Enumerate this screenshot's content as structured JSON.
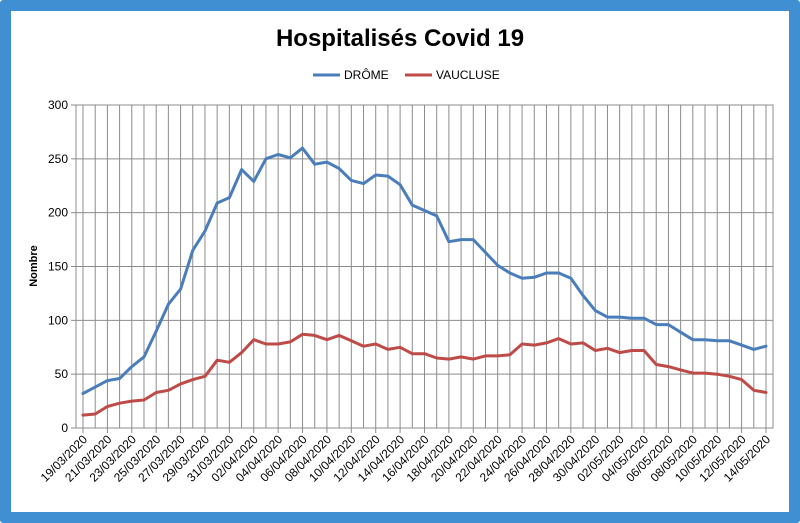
{
  "chart_data": {
    "type": "line",
    "title": "Hospitalisés Covid 19",
    "ylabel": "Nombre",
    "xlabel": "",
    "ylim": [
      0,
      300
    ],
    "yticks": [
      0,
      50,
      100,
      150,
      200,
      250,
      300
    ],
    "grid": true,
    "legend_position": "top",
    "x": [
      "19/03/2020",
      "20/03/2020",
      "21/03/2020",
      "22/03/2020",
      "23/03/2020",
      "24/03/2020",
      "25/03/2020",
      "26/03/2020",
      "27/03/2020",
      "28/03/2020",
      "29/03/2020",
      "30/03/2020",
      "31/03/2020",
      "01/04/2020",
      "02/04/2020",
      "03/04/2020",
      "04/04/2020",
      "05/04/2020",
      "06/04/2020",
      "07/04/2020",
      "08/04/2020",
      "09/04/2020",
      "10/04/2020",
      "11/04/2020",
      "12/04/2020",
      "13/04/2020",
      "14/04/2020",
      "15/04/2020",
      "16/04/2020",
      "17/04/2020",
      "18/04/2020",
      "19/04/2020",
      "20/04/2020",
      "21/04/2020",
      "22/04/2020",
      "23/04/2020",
      "24/04/2020",
      "25/04/2020",
      "26/04/2020",
      "27/04/2020",
      "28/04/2020",
      "29/04/2020",
      "30/04/2020",
      "01/05/2020",
      "02/05/2020",
      "03/05/2020",
      "04/05/2020",
      "05/05/2020",
      "06/05/2020",
      "07/05/2020",
      "08/05/2020",
      "09/05/2020",
      "10/05/2020",
      "11/05/2020",
      "12/05/2020",
      "13/05/2020",
      "14/05/2020"
    ],
    "xtick_labels": [
      "19/03/2020",
      "21/03/2020",
      "23/03/2020",
      "25/03/2020",
      "27/03/2020",
      "29/03/2020",
      "31/03/2020",
      "02/04/2020",
      "04/04/2020",
      "06/04/2020",
      "08/04/2020",
      "10/04/2020",
      "12/04/2020",
      "14/04/2020",
      "16/04/2020",
      "18/04/2020",
      "20/04/2020",
      "22/04/2020",
      "24/04/2020",
      "26/04/2020",
      "28/04/2020",
      "30/04/2020",
      "02/05/2020",
      "04/05/2020",
      "06/05/2020",
      "08/05/2020",
      "10/05/2020",
      "12/05/2020",
      "14/05/2020"
    ],
    "series": [
      {
        "name": "DRÔME",
        "color": "#4a7ebb",
        "values": [
          32,
          38,
          44,
          46,
          57,
          66,
          90,
          115,
          129,
          165,
          183,
          209,
          214,
          240,
          229,
          250,
          254,
          251,
          260,
          245,
          247,
          241,
          230,
          227,
          235,
          234,
          226,
          207,
          202,
          197,
          173,
          175,
          175,
          163,
          151,
          144,
          139,
          140,
          144,
          144,
          139,
          123,
          109,
          103,
          103,
          102,
          102,
          96,
          96,
          89,
          82,
          82,
          81,
          81,
          77,
          73,
          76
        ]
      },
      {
        "name": "VAUCLUSE",
        "color": "#be4b48",
        "values": [
          12,
          13,
          20,
          23,
          25,
          26,
          33,
          35,
          41,
          45,
          48,
          63,
          61,
          70,
          82,
          78,
          78,
          80,
          87,
          86,
          82,
          86,
          81,
          76,
          78,
          73,
          75,
          69,
          69,
          65,
          64,
          66,
          64,
          67,
          67,
          68,
          78,
          77,
          79,
          83,
          78,
          79,
          72,
          74,
          70,
          72,
          72,
          59,
          57,
          54,
          51,
          51,
          50,
          48,
          45,
          35,
          33
        ]
      }
    ]
  }
}
